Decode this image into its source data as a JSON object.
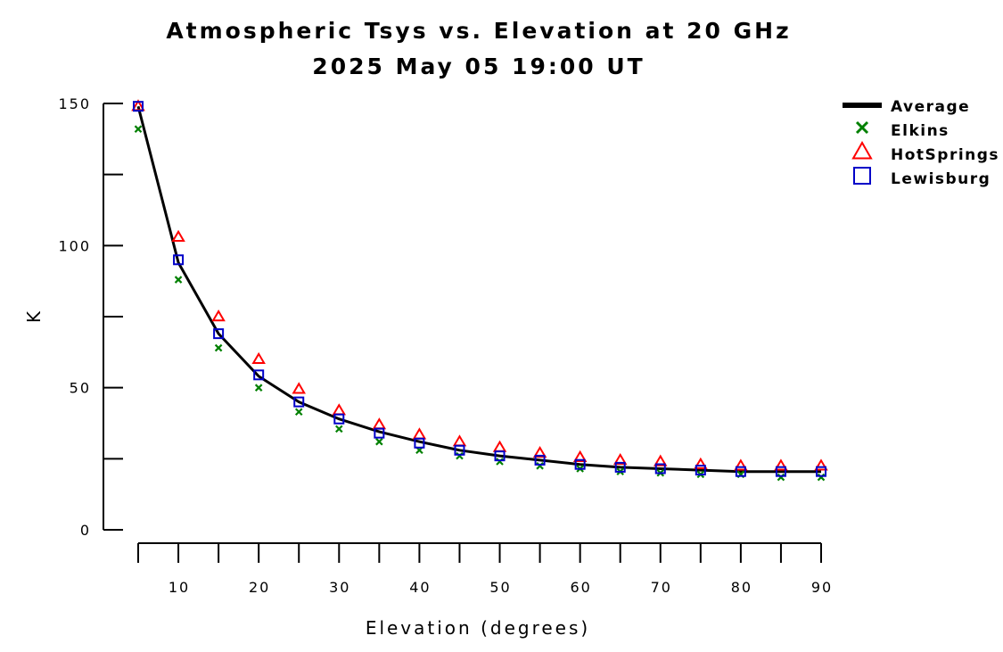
{
  "chart_data": {
    "type": "line",
    "title": "Atmospheric Tsys vs. Elevation at 20 GHz",
    "subtitle": "2025 May 05 19:00 UT",
    "xlabel": "Elevation (degrees)",
    "ylabel": "K",
    "xlim": [
      5,
      90
    ],
    "ylim": [
      0,
      150
    ],
    "x_ticks": [
      10,
      20,
      30,
      40,
      50,
      60,
      70,
      80,
      90
    ],
    "y_ticks": [
      0,
      50,
      100,
      150
    ],
    "grid": false,
    "legend_position": "top-right",
    "x": [
      5,
      10,
      15,
      20,
      25,
      30,
      35,
      40,
      45,
      50,
      55,
      60,
      65,
      70,
      75,
      80,
      85,
      90
    ],
    "series": [
      {
        "name": "Average",
        "style": "line",
        "color": "#000000",
        "values": [
          149,
          94,
          69,
          54,
          45,
          39,
          34.5,
          31,
          28,
          26,
          24.5,
          23,
          22,
          21.5,
          21,
          20.5,
          20.5,
          20.5
        ]
      },
      {
        "name": "Elkins",
        "style": "marker",
        "marker": "x",
        "color": "#008000",
        "values": [
          141,
          88,
          64,
          50,
          41.5,
          35.5,
          31,
          28,
          26,
          24,
          22.5,
          21.5,
          20.5,
          20,
          19.5,
          19.5,
          18.5,
          18.5
        ]
      },
      {
        "name": "HotSprings",
        "style": "marker",
        "marker": "triangle",
        "color": "#ff0000",
        "values": [
          149,
          103,
          75,
          60,
          49.5,
          42,
          37,
          33.5,
          31,
          29,
          27,
          25.5,
          24.5,
          24,
          23,
          22.5,
          22.5,
          22.5
        ]
      },
      {
        "name": "Lewisburg",
        "style": "marker",
        "marker": "square",
        "color": "#0000c8",
        "values": [
          149,
          95,
          69,
          54.5,
          45,
          39,
          34,
          30.5,
          28,
          26,
          24.5,
          23,
          22,
          21.5,
          21,
          20.5,
          20.5,
          20.5
        ]
      }
    ]
  }
}
